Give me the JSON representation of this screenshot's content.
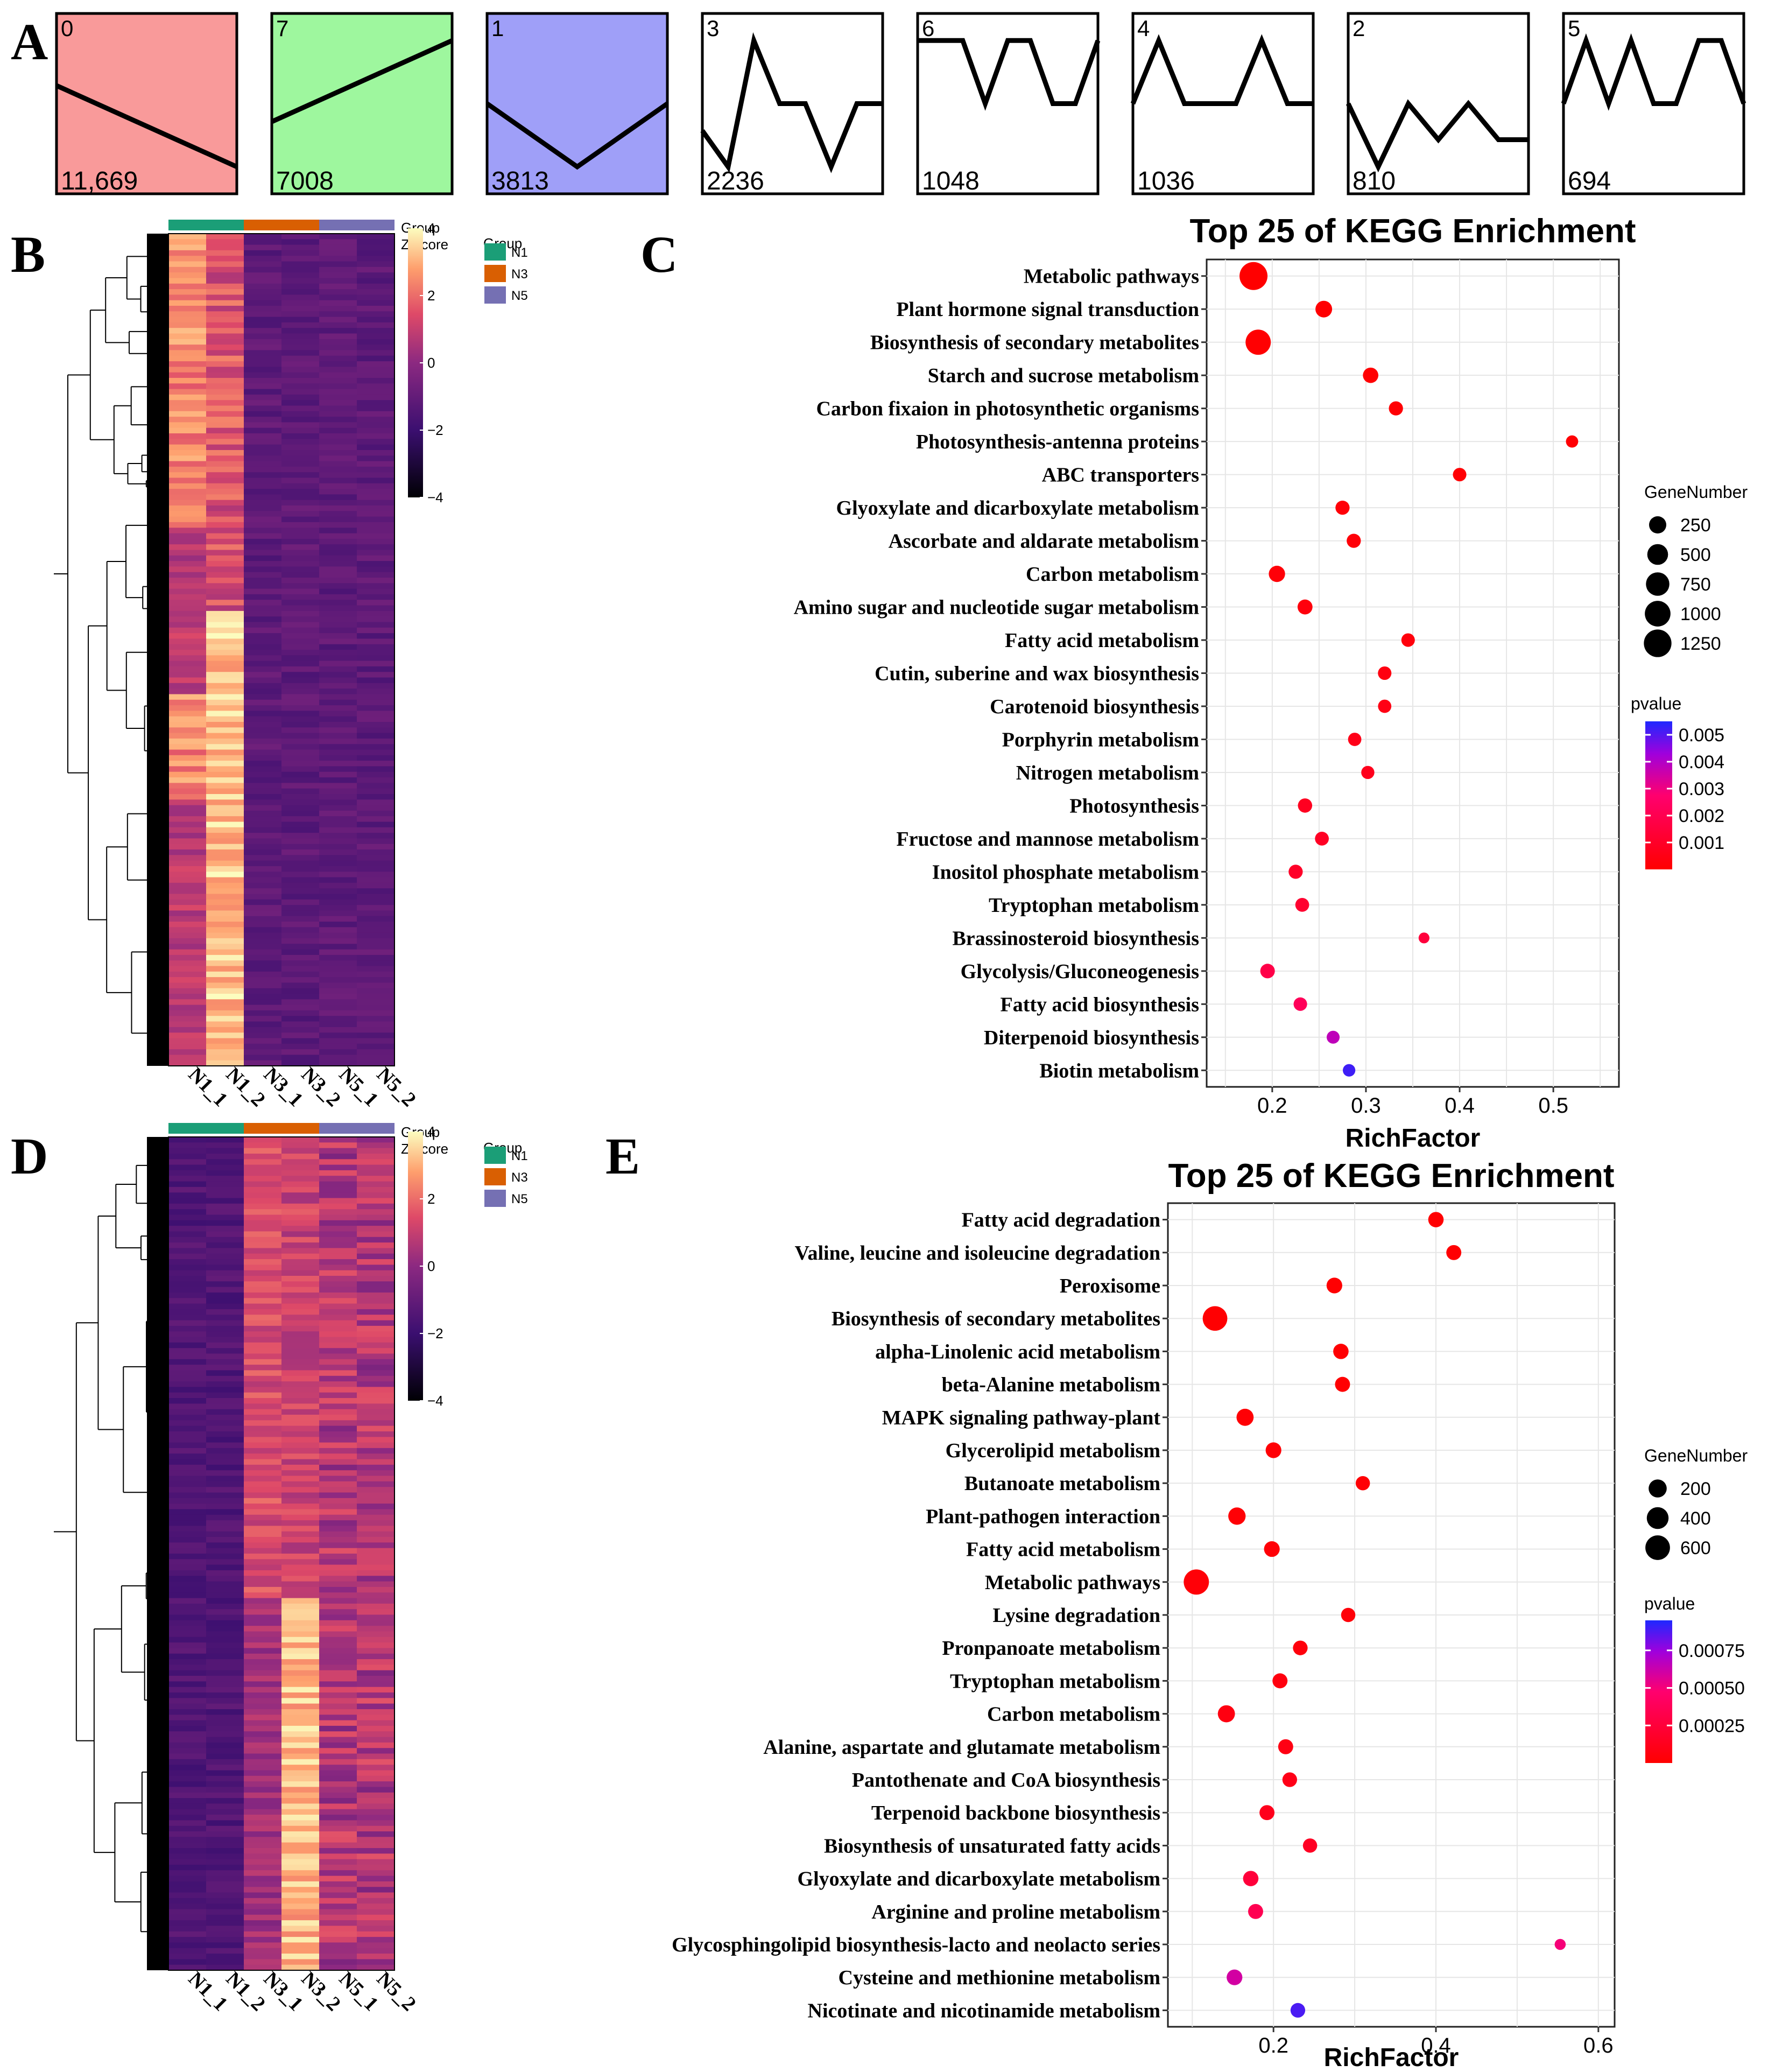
{
  "panel_labels": {
    "a": "A",
    "b": "B",
    "c": "C",
    "d": "D",
    "e": "E"
  },
  "trend_profiles": [
    {
      "id": "0",
      "count": "11,669",
      "fill": "#f99a9a",
      "shape": [
        0.4,
        0.85
      ]
    },
    {
      "id": "7",
      "count": "7008",
      "fill": "#9ef79e",
      "shape": [
        0.6,
        0.15
      ]
    },
    {
      "id": "1",
      "count": "3813",
      "fill": "#9f9ff8",
      "shape": [
        0.5,
        0.85,
        0.5
      ]
    },
    {
      "id": "3",
      "count": "2236",
      "fill": "#ffffff",
      "shape": [
        0.65,
        0.85,
        0.15,
        0.5,
        0.5,
        0.85,
        0.5,
        0.5
      ]
    },
    {
      "id": "6",
      "count": "1048",
      "fill": "#ffffff",
      "shape": [
        0.15,
        0.15,
        0.15,
        0.5,
        0.15,
        0.15,
        0.5,
        0.5,
        0.15
      ]
    },
    {
      "id": "4",
      "count": "1036",
      "fill": "#ffffff",
      "shape": [
        0.5,
        0.15,
        0.5,
        0.5,
        0.5,
        0.15,
        0.5,
        0.5
      ]
    },
    {
      "id": "2",
      "count": "810",
      "fill": "#ffffff",
      "shape": [
        0.5,
        0.85,
        0.5,
        0.7,
        0.5,
        0.7,
        0.7
      ]
    },
    {
      "id": "5",
      "count": "694",
      "fill": "#ffffff",
      "shape": [
        0.5,
        0.15,
        0.5,
        0.15,
        0.5,
        0.5,
        0.15,
        0.15,
        0.5
      ]
    }
  ],
  "heatmaps": [
    {
      "id": "B",
      "group_title": "Group",
      "zscore_title": "Z-score",
      "legend_title": "Group",
      "samples": [
        "N1_1",
        "N1_2",
        "N3_1",
        "N3_2",
        "N5_1",
        "N5_2"
      ],
      "groups": [
        {
          "name": "N1",
          "color": "#1b9e77"
        },
        {
          "name": "N3",
          "color": "#d95f02"
        },
        {
          "name": "N5",
          "color": "#7570b3"
        }
      ],
      "colorbar_ticks": [
        "4",
        "2",
        "0",
        "−2",
        "−4"
      ],
      "pattern": "early"
    },
    {
      "id": "D",
      "group_title": "Group",
      "zscore_title": "Z-score",
      "legend_title": "Group",
      "samples": [
        "N1_1",
        "N1_2",
        "N3_1",
        "N3_2",
        "N5_1",
        "N5_2"
      ],
      "groups": [
        {
          "name": "N1",
          "color": "#1b9e77"
        },
        {
          "name": "N3",
          "color": "#d95f02"
        },
        {
          "name": "N5",
          "color": "#7570b3"
        }
      ],
      "colorbar_ticks": [
        "4",
        "2",
        "0",
        "−2",
        "−4"
      ],
      "pattern": "late"
    }
  ],
  "chart_data": [
    {
      "id": "C",
      "type": "scatter",
      "title": "Top 25 of KEGG Enrichment",
      "xlabel": "RichFactor",
      "ylabel": "",
      "xlim": [
        0.13,
        0.57
      ],
      "xticks": [
        0.2,
        0.3,
        0.4,
        0.5
      ],
      "xtick_labels": [
        "0.2",
        "0.3",
        "0.4",
        "0.5"
      ],
      "size_legend_title": "GeneNumber",
      "size_legend": [
        250,
        500,
        750,
        1000,
        1250
      ],
      "size_range": [
        35,
        1300
      ],
      "color_legend_title": "pvalue",
      "color_ticks": [
        0.005,
        0.004,
        0.003,
        0.002,
        0.001
      ],
      "color_tick_labels": [
        "0.005",
        "0.004",
        "0.003",
        "0.002",
        "0.001"
      ],
      "pvalue_range": [
        0,
        0.0055
      ],
      "categories": [
        "Metabolic pathways",
        "Plant hormone signal transduction",
        "Biosynthesis of secondary metabolites",
        "Starch and sucrose metabolism",
        "Carbon fixaion in photosynthetic organisms",
        "Photosynthesis-antenna proteins",
        "ABC transporters",
        "Glyoxylate and dicarboxylate metabolism",
        "Ascorbate and aldarate metabolism",
        "Carbon metabolism",
        "Amino sugar and nucleotide sugar metabolism",
        "Fatty acid metabolism",
        "Cutin, suberine and wax biosynthesis",
        "Carotenoid biosynthesis",
        "Porphyrin metabolism",
        "Nitrogen metabolism",
        "Photosynthesis",
        "Fructose and mannose metabolism",
        "Inositol phosphate metabolism",
        "Tryptophan metabolism",
        "Brassinosteroid biosynthesis",
        "Glycolysis/Gluconeogenesis",
        "Fatty acid biosynthesis",
        "Diterpenoid biosynthesis",
        "Biotin metabolism"
      ],
      "points": [
        {
          "x": 0.18,
          "gene": 1300,
          "p": 1e-05
        },
        {
          "x": 0.255,
          "gene": 220,
          "p": 5e-05
        },
        {
          "x": 0.185,
          "gene": 950,
          "p": 5e-05
        },
        {
          "x": 0.305,
          "gene": 160,
          "p": 5e-05
        },
        {
          "x": 0.332,
          "gene": 110,
          "p": 0.0001
        },
        {
          "x": 0.52,
          "gene": 60,
          "p": 0.0001
        },
        {
          "x": 0.4,
          "gene": 90,
          "p": 0.0001
        },
        {
          "x": 0.275,
          "gene": 110,
          "p": 0.0002
        },
        {
          "x": 0.287,
          "gene": 110,
          "p": 0.0002
        },
        {
          "x": 0.205,
          "gene": 200,
          "p": 0.0002
        },
        {
          "x": 0.235,
          "gene": 140,
          "p": 0.0003
        },
        {
          "x": 0.345,
          "gene": 90,
          "p": 0.0003
        },
        {
          "x": 0.32,
          "gene": 90,
          "p": 0.0004
        },
        {
          "x": 0.32,
          "gene": 85,
          "p": 0.0005
        },
        {
          "x": 0.288,
          "gene": 85,
          "p": 0.0006
        },
        {
          "x": 0.302,
          "gene": 80,
          "p": 0.0007
        },
        {
          "x": 0.235,
          "gene": 115,
          "p": 0.0008
        },
        {
          "x": 0.253,
          "gene": 100,
          "p": 0.0009
        },
        {
          "x": 0.225,
          "gene": 110,
          "p": 0.001
        },
        {
          "x": 0.232,
          "gene": 100,
          "p": 0.0012
        },
        {
          "x": 0.362,
          "gene": 40,
          "p": 0.0015
        },
        {
          "x": 0.195,
          "gene": 125,
          "p": 0.0018
        },
        {
          "x": 0.23,
          "gene": 90,
          "p": 0.0022
        },
        {
          "x": 0.265,
          "gene": 75,
          "p": 0.0038
        },
        {
          "x": 0.282,
          "gene": 65,
          "p": 0.0052
        }
      ]
    },
    {
      "id": "E",
      "type": "scatter",
      "title": "Top 25 of KEGG Enrichment",
      "xlabel": "RichFactor",
      "ylabel": "",
      "xlim": [
        0.07,
        0.62
      ],
      "xticks": [
        0.2,
        0.4,
        0.6
      ],
      "xtick_labels": [
        "0.2",
        "0.4",
        "0.6"
      ],
      "size_legend_title": "GeneNumber",
      "size_legend": [
        200,
        400,
        600
      ],
      "size_range": [
        15,
        700
      ],
      "color_legend_title": "pvalue",
      "color_ticks": [
        0.00075,
        0.0005,
        0.00025
      ],
      "color_tick_labels": [
        "0.00075",
        "0.00050",
        "0.00025"
      ],
      "pvalue_range": [
        0,
        0.00095
      ],
      "categories": [
        "Fatty acid degradation",
        "Valine, leucine and isoleucine degradation",
        "Peroxisome",
        "Biosynthesis of secondary metabolites",
        "alpha-Linolenic acid metabolism",
        "beta-Alanine metabolism",
        "MAPK signaling pathway-plant",
        "Glycerolipid metabolism",
        "Butanoate metabolism",
        "Plant-pathogen interaction",
        "Fatty acid metabolism",
        "Metabolic pathways",
        "Lysine degradation",
        "Pronpanoate metabolism",
        "Tryptophan metabolism",
        "Carbon metabolism",
        "Alanine, aspartate and glutamate metabolism",
        "Pantothenate and CoA biosynthesis",
        "Terpenoid backbone biosynthesis",
        "Biosynthesis of unsaturated fatty acids",
        "Glyoxylate and dicarboxylate metabolism",
        "Arginine and proline metabolism",
        "Glycosphingolipid biosynthesis-lacto and neolacto series",
        "Cysteine and methionine metabolism",
        "Nicotinate and nicotinamide metabolism"
      ],
      "points": [
        {
          "x": 0.4,
          "gene": 100,
          "p": 1e-05
        },
        {
          "x": 0.422,
          "gene": 90,
          "p": 1e-05
        },
        {
          "x": 0.275,
          "gene": 110,
          "p": 1e-05
        },
        {
          "x": 0.128,
          "gene": 600,
          "p": 1e-05
        },
        {
          "x": 0.283,
          "gene": 100,
          "p": 1e-05
        },
        {
          "x": 0.285,
          "gene": 90,
          "p": 1e-05
        },
        {
          "x": 0.165,
          "gene": 160,
          "p": 2e-05
        },
        {
          "x": 0.2,
          "gene": 110,
          "p": 2e-05
        },
        {
          "x": 0.31,
          "gene": 70,
          "p": 2e-05
        },
        {
          "x": 0.155,
          "gene": 170,
          "p": 2e-05
        },
        {
          "x": 0.198,
          "gene": 110,
          "p": 3e-05
        },
        {
          "x": 0.105,
          "gene": 650,
          "p": 3e-05
        },
        {
          "x": 0.292,
          "gene": 70,
          "p": 4e-05
        },
        {
          "x": 0.233,
          "gene": 80,
          "p": 5e-05
        },
        {
          "x": 0.208,
          "gene": 90,
          "p": 6e-05
        },
        {
          "x": 0.142,
          "gene": 160,
          "p": 7e-05
        },
        {
          "x": 0.215,
          "gene": 90,
          "p": 8e-05
        },
        {
          "x": 0.22,
          "gene": 80,
          "p": 0.0001
        },
        {
          "x": 0.192,
          "gene": 90,
          "p": 0.00012
        },
        {
          "x": 0.245,
          "gene": 70,
          "p": 0.00015
        },
        {
          "x": 0.172,
          "gene": 100,
          "p": 0.00025
        },
        {
          "x": 0.178,
          "gene": 90,
          "p": 0.00035
        },
        {
          "x": 0.553,
          "gene": 20,
          "p": 0.0005
        },
        {
          "x": 0.152,
          "gene": 110,
          "p": 0.0006
        },
        {
          "x": 0.23,
          "gene": 80,
          "p": 0.00088
        }
      ]
    }
  ]
}
